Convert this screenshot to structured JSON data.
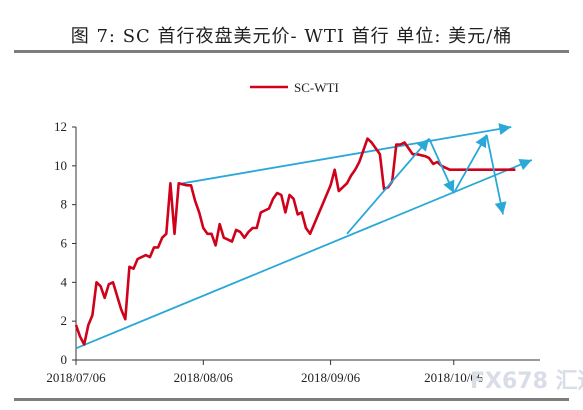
{
  "title": "图 7: SC 首行夜盘美元价- WTI 首行  单位: 美元/桶",
  "watermark": "FX678 汇通网",
  "colors": {
    "series": "#d0021b",
    "trend": "#2aa8d8",
    "axis": "#333333",
    "rule": "#7d7d7d"
  },
  "chart_data": {
    "type": "line",
    "title": "图 7: SC 首行夜盘美元价- WTI 首行  单位: 美元/桶",
    "ylim": [
      0,
      12
    ],
    "yticks": [
      0,
      2,
      4,
      6,
      8,
      10,
      12
    ],
    "xticks": [
      "2018/07/06",
      "2018/08/06",
      "2018/09/06",
      "2018/10/06"
    ],
    "legend": {
      "position": "top-center",
      "entries": [
        "SC-WTI"
      ]
    },
    "grid": false,
    "series": [
      {
        "name": "SC-WTI",
        "x": [
          "2018/07/06",
          "2018/07/07",
          "2018/07/08",
          "2018/07/09",
          "2018/07/10",
          "2018/07/11",
          "2018/07/12",
          "2018/07/13",
          "2018/07/14",
          "2018/07/15",
          "2018/07/16",
          "2018/07/17",
          "2018/07/18",
          "2018/07/19",
          "2018/07/20",
          "2018/07/21",
          "2018/07/22",
          "2018/07/23",
          "2018/07/24",
          "2018/07/25",
          "2018/07/26",
          "2018/07/27",
          "2018/07/28",
          "2018/07/29",
          "2018/07/30",
          "2018/07/31",
          "2018/08/01",
          "2018/08/02",
          "2018/08/03",
          "2018/08/04",
          "2018/08/05",
          "2018/08/06",
          "2018/08/07",
          "2018/08/08",
          "2018/08/09",
          "2018/08/10",
          "2018/08/11",
          "2018/08/12",
          "2018/08/13",
          "2018/08/14",
          "2018/08/15",
          "2018/08/16",
          "2018/08/17",
          "2018/08/18",
          "2018/08/19",
          "2018/08/20",
          "2018/08/21",
          "2018/08/22",
          "2018/08/23",
          "2018/08/24",
          "2018/08/25",
          "2018/08/26",
          "2018/08/27",
          "2018/08/28",
          "2018/08/29",
          "2018/08/30",
          "2018/08/31",
          "2018/09/01",
          "2018/09/02",
          "2018/09/03",
          "2018/09/04",
          "2018/09/05",
          "2018/09/06",
          "2018/09/07",
          "2018/09/08",
          "2018/09/09",
          "2018/09/10",
          "2018/09/11",
          "2018/09/12",
          "2018/09/13",
          "2018/09/14",
          "2018/09/15",
          "2018/09/16",
          "2018/09/17",
          "2018/09/18",
          "2018/09/19",
          "2018/09/20",
          "2018/09/21",
          "2018/09/22",
          "2018/09/23",
          "2018/09/24",
          "2018/09/25",
          "2018/09/26",
          "2018/09/27",
          "2018/09/28",
          "2018/09/29",
          "2018/09/30",
          "2018/10/01",
          "2018/10/02",
          "2018/10/03",
          "2018/10/04",
          "2018/10/05",
          "2018/10/06",
          "2018/10/07",
          "2018/10/08",
          "2018/10/09",
          "2018/10/10",
          "2018/10/11",
          "2018/10/12",
          "2018/10/13",
          "2018/10/14",
          "2018/10/15",
          "2018/10/16",
          "2018/10/17",
          "2018/10/18",
          "2018/10/19",
          "2018/10/20",
          "2018/10/21"
        ],
        "values": [
          1.8,
          1.2,
          0.8,
          1.8,
          2.3,
          4.0,
          3.8,
          3.2,
          3.9,
          4.0,
          3.3,
          2.6,
          2.1,
          4.8,
          4.7,
          5.2,
          5.3,
          5.4,
          5.3,
          5.8,
          5.8,
          6.3,
          6.5,
          9.1,
          6.5,
          9.1,
          9.05,
          9.0,
          9.0,
          8.2,
          7.6,
          6.8,
          6.5,
          6.5,
          5.9,
          7.0,
          6.3,
          6.2,
          6.1,
          6.7,
          6.6,
          6.3,
          6.6,
          6.8,
          6.8,
          7.6,
          7.7,
          7.8,
          8.3,
          8.6,
          8.5,
          7.6,
          8.5,
          8.3,
          7.5,
          7.6,
          6.8,
          6.5,
          7.0,
          7.5,
          8.0,
          8.5,
          9.0,
          9.8,
          8.7,
          8.9,
          9.1,
          9.5,
          9.8,
          10.2,
          10.8,
          11.4,
          11.2,
          10.9,
          10.6,
          8.8,
          8.9,
          9.2,
          11.1,
          11.1,
          11.2,
          10.9,
          10.6,
          10.6,
          10.55,
          10.5,
          10.4,
          10.1,
          10.2,
          10.0,
          9.9,
          9.8,
          9.8,
          9.8,
          9.8,
          9.8,
          9.8,
          9.8,
          9.8,
          9.8,
          9.8,
          9.8,
          9.8,
          9.8,
          9.8,
          9.8,
          9.8,
          9.8
        ]
      }
    ],
    "annotations": {
      "trend_lines": [
        {
          "from": [
            "2018/07/06",
            0.6
          ],
          "to": [
            "2018/10/25",
            10.3
          ]
        },
        {
          "from": [
            "2018/08/01",
            9.1
          ],
          "to": [
            "2018/10/20",
            12.0
          ]
        }
      ],
      "arrows": [
        {
          "from": [
            "2018/09/10",
            6.5
          ],
          "to": [
            "2018/09/30",
            11.4
          ]
        },
        {
          "from": [
            "2018/09/30",
            11.4
          ],
          "to": [
            "2018/10/06",
            8.6
          ]
        },
        {
          "from": [
            "2018/10/06",
            8.6
          ],
          "to": [
            "2018/10/14",
            11.6
          ]
        },
        {
          "from": [
            "2018/10/14",
            11.6
          ],
          "to": [
            "2018/10/18",
            7.5
          ]
        }
      ]
    }
  }
}
